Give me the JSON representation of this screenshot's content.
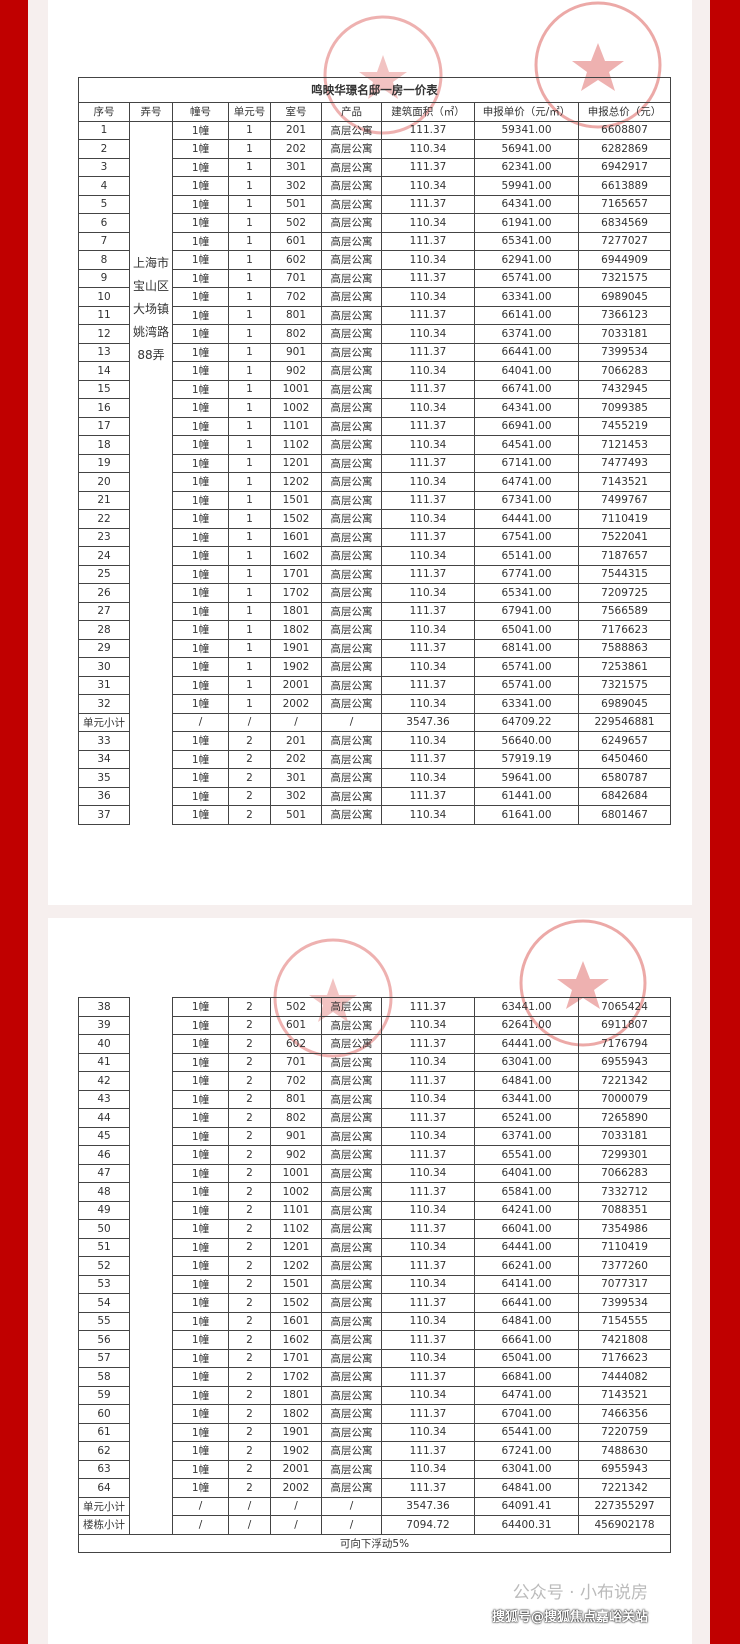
{
  "title": "鸣映华璟名邸一房一价表",
  "headers": [
    "序号",
    "弄号",
    "幢号",
    "单元号",
    "室号",
    "产品",
    "建筑面积（㎡）",
    "申报单价（元/㎡）",
    "申报总价（元）"
  ],
  "lane": "上海市宝山区大场镇姚湾路88弄",
  "stamp_color": "#d9534f",
  "page1_rows": [
    [
      "1",
      "1幢",
      "1",
      "201",
      "高层公寓",
      "111.37",
      "59341.00",
      "6608807"
    ],
    [
      "2",
      "1幢",
      "1",
      "202",
      "高层公寓",
      "110.34",
      "56941.00",
      "6282869"
    ],
    [
      "3",
      "1幢",
      "1",
      "301",
      "高层公寓",
      "111.37",
      "62341.00",
      "6942917"
    ],
    [
      "4",
      "1幢",
      "1",
      "302",
      "高层公寓",
      "110.34",
      "59941.00",
      "6613889"
    ],
    [
      "5",
      "1幢",
      "1",
      "501",
      "高层公寓",
      "111.37",
      "64341.00",
      "7165657"
    ],
    [
      "6",
      "1幢",
      "1",
      "502",
      "高层公寓",
      "110.34",
      "61941.00",
      "6834569"
    ],
    [
      "7",
      "1幢",
      "1",
      "601",
      "高层公寓",
      "111.37",
      "65341.00",
      "7277027"
    ],
    [
      "8",
      "1幢",
      "1",
      "602",
      "高层公寓",
      "110.34",
      "62941.00",
      "6944909"
    ],
    [
      "9",
      "1幢",
      "1",
      "701",
      "高层公寓",
      "111.37",
      "65741.00",
      "7321575"
    ],
    [
      "10",
      "1幢",
      "1",
      "702",
      "高层公寓",
      "110.34",
      "63341.00",
      "6989045"
    ],
    [
      "11",
      "1幢",
      "1",
      "801",
      "高层公寓",
      "111.37",
      "66141.00",
      "7366123"
    ],
    [
      "12",
      "1幢",
      "1",
      "802",
      "高层公寓",
      "110.34",
      "63741.00",
      "7033181"
    ],
    [
      "13",
      "1幢",
      "1",
      "901",
      "高层公寓",
      "111.37",
      "66441.00",
      "7399534"
    ],
    [
      "14",
      "1幢",
      "1",
      "902",
      "高层公寓",
      "110.34",
      "64041.00",
      "7066283"
    ],
    [
      "15",
      "1幢",
      "1",
      "1001",
      "高层公寓",
      "111.37",
      "66741.00",
      "7432945"
    ],
    [
      "16",
      "1幢",
      "1",
      "1002",
      "高层公寓",
      "110.34",
      "64341.00",
      "7099385"
    ],
    [
      "17",
      "1幢",
      "1",
      "1101",
      "高层公寓",
      "111.37",
      "66941.00",
      "7455219"
    ],
    [
      "18",
      "1幢",
      "1",
      "1102",
      "高层公寓",
      "110.34",
      "64541.00",
      "7121453"
    ],
    [
      "19",
      "1幢",
      "1",
      "1201",
      "高层公寓",
      "111.37",
      "67141.00",
      "7477493"
    ],
    [
      "20",
      "1幢",
      "1",
      "1202",
      "高层公寓",
      "110.34",
      "64741.00",
      "7143521"
    ],
    [
      "21",
      "1幢",
      "1",
      "1501",
      "高层公寓",
      "111.37",
      "67341.00",
      "7499767"
    ],
    [
      "22",
      "1幢",
      "1",
      "1502",
      "高层公寓",
      "110.34",
      "64441.00",
      "7110419"
    ],
    [
      "23",
      "1幢",
      "1",
      "1601",
      "高层公寓",
      "111.37",
      "67541.00",
      "7522041"
    ],
    [
      "24",
      "1幢",
      "1",
      "1602",
      "高层公寓",
      "110.34",
      "65141.00",
      "7187657"
    ],
    [
      "25",
      "1幢",
      "1",
      "1701",
      "高层公寓",
      "111.37",
      "67741.00",
      "7544315"
    ],
    [
      "26",
      "1幢",
      "1",
      "1702",
      "高层公寓",
      "110.34",
      "65341.00",
      "7209725"
    ],
    [
      "27",
      "1幢",
      "1",
      "1801",
      "高层公寓",
      "111.37",
      "67941.00",
      "7566589"
    ],
    [
      "28",
      "1幢",
      "1",
      "1802",
      "高层公寓",
      "110.34",
      "65041.00",
      "7176623"
    ],
    [
      "29",
      "1幢",
      "1",
      "1901",
      "高层公寓",
      "111.37",
      "68141.00",
      "7588863"
    ],
    [
      "30",
      "1幢",
      "1",
      "1902",
      "高层公寓",
      "110.34",
      "65741.00",
      "7253861"
    ],
    [
      "31",
      "1幢",
      "1",
      "2001",
      "高层公寓",
      "111.37",
      "65741.00",
      "7321575"
    ],
    [
      "32",
      "1幢",
      "1",
      "2002",
      "高层公寓",
      "110.34",
      "63341.00",
      "6989045"
    ],
    [
      "单元小计",
      "/",
      "/",
      "/",
      "/",
      "3547.36",
      "64709.22",
      "229546881"
    ],
    [
      "33",
      "1幢",
      "2",
      "201",
      "高层公寓",
      "110.34",
      "56640.00",
      "6249657"
    ],
    [
      "34",
      "1幢",
      "2",
      "202",
      "高层公寓",
      "111.37",
      "57919.19",
      "6450460"
    ],
    [
      "35",
      "1幢",
      "2",
      "301",
      "高层公寓",
      "110.34",
      "59641.00",
      "6580787"
    ],
    [
      "36",
      "1幢",
      "2",
      "302",
      "高层公寓",
      "111.37",
      "61441.00",
      "6842684"
    ],
    [
      "37",
      "1幢",
      "2",
      "501",
      "高层公寓",
      "110.34",
      "61641.00",
      "6801467"
    ]
  ],
  "page2_rows": [
    [
      "38",
      "1幢",
      "2",
      "502",
      "高层公寓",
      "111.37",
      "63441.00",
      "7065424"
    ],
    [
      "39",
      "1幢",
      "2",
      "601",
      "高层公寓",
      "110.34",
      "62641.00",
      "6911807"
    ],
    [
      "40",
      "1幢",
      "2",
      "602",
      "高层公寓",
      "111.37",
      "64441.00",
      "7176794"
    ],
    [
      "41",
      "1幢",
      "2",
      "701",
      "高层公寓",
      "110.34",
      "63041.00",
      "6955943"
    ],
    [
      "42",
      "1幢",
      "2",
      "702",
      "高层公寓",
      "111.37",
      "64841.00",
      "7221342"
    ],
    [
      "43",
      "1幢",
      "2",
      "801",
      "高层公寓",
      "110.34",
      "63441.00",
      "7000079"
    ],
    [
      "44",
      "1幢",
      "2",
      "802",
      "高层公寓",
      "111.37",
      "65241.00",
      "7265890"
    ],
    [
      "45",
      "1幢",
      "2",
      "901",
      "高层公寓",
      "110.34",
      "63741.00",
      "7033181"
    ],
    [
      "46",
      "1幢",
      "2",
      "902",
      "高层公寓",
      "111.37",
      "65541.00",
      "7299301"
    ],
    [
      "47",
      "1幢",
      "2",
      "1001",
      "高层公寓",
      "110.34",
      "64041.00",
      "7066283"
    ],
    [
      "48",
      "1幢",
      "2",
      "1002",
      "高层公寓",
      "111.37",
      "65841.00",
      "7332712"
    ],
    [
      "49",
      "1幢",
      "2",
      "1101",
      "高层公寓",
      "110.34",
      "64241.00",
      "7088351"
    ],
    [
      "50",
      "1幢",
      "2",
      "1102",
      "高层公寓",
      "111.37",
      "66041.00",
      "7354986"
    ],
    [
      "51",
      "1幢",
      "2",
      "1201",
      "高层公寓",
      "110.34",
      "64441.00",
      "7110419"
    ],
    [
      "52",
      "1幢",
      "2",
      "1202",
      "高层公寓",
      "111.37",
      "66241.00",
      "7377260"
    ],
    [
      "53",
      "1幢",
      "2",
      "1501",
      "高层公寓",
      "110.34",
      "64141.00",
      "7077317"
    ],
    [
      "54",
      "1幢",
      "2",
      "1502",
      "高层公寓",
      "111.37",
      "66441.00",
      "7399534"
    ],
    [
      "55",
      "1幢",
      "2",
      "1601",
      "高层公寓",
      "110.34",
      "64841.00",
      "7154555"
    ],
    [
      "56",
      "1幢",
      "2",
      "1602",
      "高层公寓",
      "111.37",
      "66641.00",
      "7421808"
    ],
    [
      "57",
      "1幢",
      "2",
      "1701",
      "高层公寓",
      "110.34",
      "65041.00",
      "7176623"
    ],
    [
      "58",
      "1幢",
      "2",
      "1702",
      "高层公寓",
      "111.37",
      "66841.00",
      "7444082"
    ],
    [
      "59",
      "1幢",
      "2",
      "1801",
      "高层公寓",
      "110.34",
      "64741.00",
      "7143521"
    ],
    [
      "60",
      "1幢",
      "2",
      "1802",
      "高层公寓",
      "111.37",
      "67041.00",
      "7466356"
    ],
    [
      "61",
      "1幢",
      "2",
      "1901",
      "高层公寓",
      "110.34",
      "65441.00",
      "7220759"
    ],
    [
      "62",
      "1幢",
      "2",
      "1902",
      "高层公寓",
      "111.37",
      "67241.00",
      "7488630"
    ],
    [
      "63",
      "1幢",
      "2",
      "2001",
      "高层公寓",
      "110.34",
      "63041.00",
      "6955943"
    ],
    [
      "64",
      "1幢",
      "2",
      "2002",
      "高层公寓",
      "111.37",
      "64841.00",
      "7221342"
    ],
    [
      "单元小计",
      "/",
      "/",
      "/",
      "/",
      "3547.36",
      "64091.41",
      "227355297"
    ],
    [
      "楼栋小计",
      "/",
      "/",
      "/",
      "/",
      "7094.72",
      "64400.31",
      "456902178"
    ]
  ],
  "note": "可向下浮动5%",
  "watermark": "公众号 · 小布说房",
  "source_label": "搜狐号@搜狐焦点嘉峪关站"
}
